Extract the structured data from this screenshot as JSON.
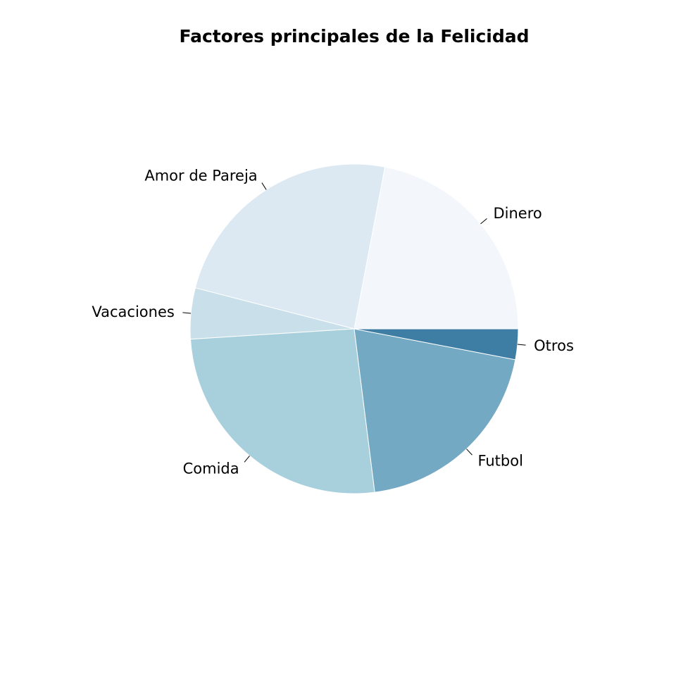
{
  "chart_data": {
    "type": "pie",
    "title": "Factores principales de la Felicidad",
    "start_angle_deg": 0,
    "direction": "counterclockwise",
    "slices": [
      {
        "label": "Dinero",
        "value": 22,
        "color": "#f3f7fb"
      },
      {
        "label": "Amor de Pareja",
        "value": 24,
        "color": "#dce9f2"
      },
      {
        "label": "Vacaciones",
        "value": 5,
        "color": "#c9e0ea"
      },
      {
        "label": "Comida",
        "value": 26,
        "color": "#a8cfdc"
      },
      {
        "label": "Futbol",
        "value": 20,
        "color": "#74a9c4"
      },
      {
        "label": "Otros",
        "value": 3,
        "color": "#3f7ea4"
      }
    ]
  }
}
